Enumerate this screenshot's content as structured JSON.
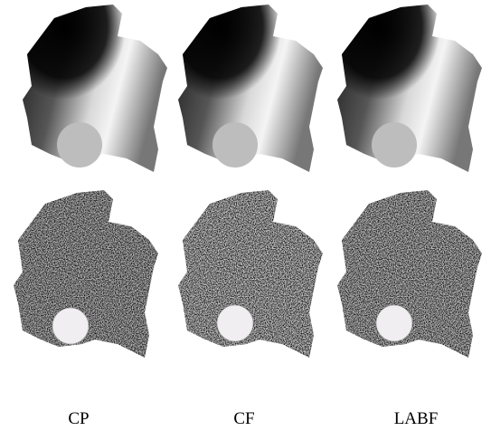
{
  "figure": {
    "labels": [
      "CP",
      "CF",
      "LABF"
    ]
  }
}
